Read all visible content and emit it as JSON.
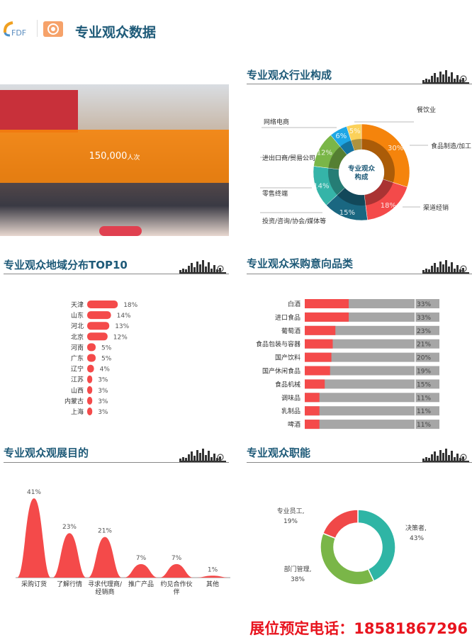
{
  "header": {
    "logo_text": "FDF",
    "title": "专业观众数据"
  },
  "photo": {
    "visitors": "150,000",
    "unit": "人次",
    "band_color": "#f5840c"
  },
  "sections": {
    "industry": "专业观众行业构成",
    "region": "专业观众地域分布TOP10",
    "purchase": "专业观众采购意向品类",
    "purpose": "专业观众观展目的",
    "role": "专业观众职能"
  },
  "footer": {
    "label": "展位预定电话：",
    "phone": "18581867296"
  },
  "chart_data": [
    {
      "type": "pie",
      "id": "industry",
      "center_label": [
        "专业观众",
        "构成"
      ],
      "slices": [
        {
          "label": "食品制造/加工",
          "value": 30,
          "color": "#f5840c"
        },
        {
          "label": "渠道经销",
          "value": 18,
          "color": "#f44a4a"
        },
        {
          "label": "投资/咨询/协会/媒体等",
          "value": 15,
          "color": "#1a6781"
        },
        {
          "label": "零售终端",
          "value": 14,
          "color": "#35b4a8"
        },
        {
          "label": "进出口商/贸易公司",
          "value": 12,
          "color": "#7ab648"
        },
        {
          "label": "网络电商",
          "value": 6,
          "color": "#1ea7e6"
        },
        {
          "label": "餐饮业",
          "value": 5,
          "color": "#fbd15a"
        }
      ]
    },
    {
      "type": "bar",
      "id": "region",
      "orientation": "horizontal",
      "categories": [
        "天津",
        "山东",
        "河北",
        "北京",
        "河南",
        "广东",
        "辽宁",
        "江苏",
        "山西",
        "内蒙古",
        "上海"
      ],
      "values": [
        18,
        14,
        13,
        12,
        5,
        5,
        4,
        3,
        3,
        3,
        3
      ],
      "unit": "%",
      "color": "#f44a4a"
    },
    {
      "type": "bar",
      "id": "purchase",
      "orientation": "horizontal",
      "stacked_background": true,
      "categories": [
        "白酒",
        "进口食品",
        "葡萄酒",
        "食品包装与容器",
        "国产饮料",
        "国产休闲食品",
        "食品机械",
        "调味品",
        "乳制品",
        "啤酒"
      ],
      "values": [
        33,
        33,
        23,
        21,
        20,
        19,
        15,
        11,
        11,
        11
      ],
      "unit": "%",
      "color": "#f44a4a",
      "background_color": "#a6a6a6"
    },
    {
      "type": "area",
      "id": "purpose",
      "categories": [
        "采购订货",
        "了解行情",
        "寻求代理商/经销商",
        "推广产品",
        "约见合作伙伴",
        "其他"
      ],
      "category_lines": [
        [
          "采购订货"
        ],
        [
          "了解行情"
        ],
        [
          "寻求代理商/",
          "经销商"
        ],
        [
          "推广产品"
        ],
        [
          "约见合作伙",
          "伴"
        ],
        [
          "其他"
        ]
      ],
      "values": [
        41,
        23,
        21,
        7,
        7,
        1
      ],
      "unit": "%",
      "color": "#f44a4a"
    },
    {
      "type": "pie",
      "id": "role",
      "donut": true,
      "slices": [
        {
          "label": "决策者",
          "value": 43,
          "color": "#2fb5a5"
        },
        {
          "label": "部门管理",
          "value": 38,
          "color": "#7ab648"
        },
        {
          "label": "专业员工",
          "value": 19,
          "color": "#f04848"
        }
      ]
    }
  ]
}
